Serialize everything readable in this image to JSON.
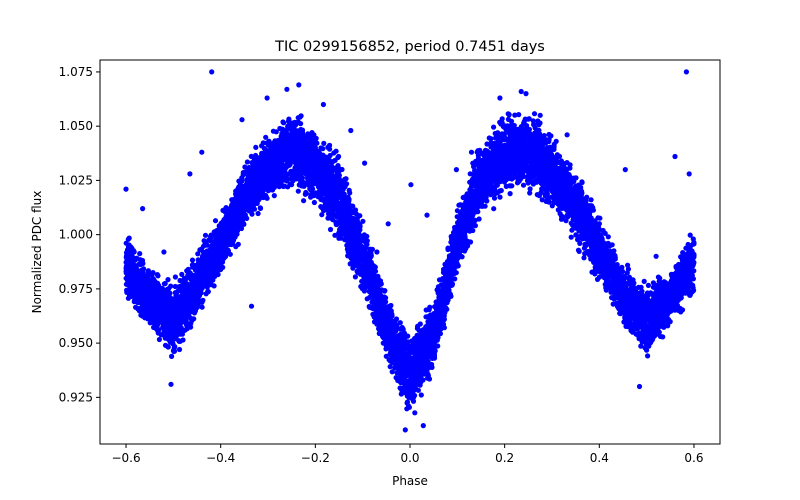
{
  "chart_data": {
    "type": "scatter",
    "title": "TIC 0299156852, period 0.7451 days",
    "xlabel": "Phase",
    "ylabel": "Normalized PDC flux",
    "xlim": [
      -0.655,
      0.655
    ],
    "ylim": [
      0.9035,
      1.0805
    ],
    "xticks": [
      -0.6,
      -0.4,
      -0.2,
      0.0,
      0.2,
      0.4,
      0.6
    ],
    "xtick_labels": [
      "−0.6",
      "−0.4",
      "−0.2",
      "0.0",
      "0.2",
      "0.4",
      "0.6"
    ],
    "yticks": [
      0.925,
      0.95,
      0.975,
      1.0,
      1.025,
      1.05,
      1.075
    ],
    "ytick_labels": [
      "0.925",
      "0.950",
      "0.975",
      "1.000",
      "1.025",
      "1.050",
      "1.075"
    ],
    "grid": false,
    "marker_color": "#0000ff",
    "series": [
      {
        "name": "",
        "color": "#0000ff",
        "envelope_upper": [
          [
            -0.6,
            1.004
          ],
          [
            -0.55,
            0.986
          ],
          [
            -0.5,
            0.982
          ],
          [
            -0.45,
            0.994
          ],
          [
            -0.4,
            1.013
          ],
          [
            -0.35,
            1.035
          ],
          [
            -0.3,
            1.05
          ],
          [
            -0.25,
            1.06
          ],
          [
            -0.2,
            1.052
          ],
          [
            -0.15,
            1.04
          ],
          [
            -0.1,
            1.01
          ],
          [
            -0.05,
            0.975
          ],
          [
            0.0,
            0.958
          ],
          [
            0.05,
            0.972
          ],
          [
            0.1,
            1.015
          ],
          [
            0.15,
            1.045
          ],
          [
            0.2,
            1.059
          ],
          [
            0.25,
            1.061
          ],
          [
            0.3,
            1.05
          ],
          [
            0.35,
            1.034
          ],
          [
            0.4,
            1.012
          ],
          [
            0.45,
            0.99
          ],
          [
            0.5,
            0.981
          ],
          [
            0.55,
            0.985
          ],
          [
            0.6,
            1.005
          ]
        ],
        "envelope_lower": [
          [
            -0.6,
            0.967
          ],
          [
            -0.55,
            0.955
          ],
          [
            -0.5,
            0.94
          ],
          [
            -0.45,
            0.958
          ],
          [
            -0.4,
            0.978
          ],
          [
            -0.35,
            1.0
          ],
          [
            -0.3,
            1.012
          ],
          [
            -0.25,
            1.018
          ],
          [
            -0.2,
            1.01
          ],
          [
            -0.15,
            0.992
          ],
          [
            -0.1,
            0.97
          ],
          [
            -0.05,
            0.94
          ],
          [
            0.0,
            0.912
          ],
          [
            0.05,
            0.935
          ],
          [
            0.1,
            0.98
          ],
          [
            0.15,
            1.006
          ],
          [
            0.2,
            1.015
          ],
          [
            0.25,
            1.016
          ],
          [
            0.3,
            1.008
          ],
          [
            0.35,
            0.993
          ],
          [
            0.4,
            0.975
          ],
          [
            0.45,
            0.955
          ],
          [
            0.5,
            0.94
          ],
          [
            0.55,
            0.957
          ],
          [
            0.6,
            0.97
          ]
        ],
        "outliers": [
          [
            -0.419,
            1.075
          ],
          [
            0.584,
            1.075
          ],
          [
            -0.302,
            1.063
          ],
          [
            -0.183,
            1.06
          ],
          [
            0.19,
            1.063
          ],
          [
            0.245,
            1.065
          ],
          [
            -0.355,
            1.053
          ],
          [
            -0.125,
            1.048
          ],
          [
            0.275,
            1.055
          ],
          [
            -0.44,
            1.038
          ],
          [
            0.56,
            1.036
          ],
          [
            0.13,
            1.038
          ],
          [
            0.59,
            1.028
          ],
          [
            -0.565,
            1.012
          ],
          [
            0.002,
            1.023
          ],
          [
            0.036,
            1.009
          ],
          [
            -0.046,
            1.005
          ],
          [
            -0.07,
            0.992
          ],
          [
            0.06,
            0.976
          ],
          [
            -0.335,
            0.967
          ],
          [
            -0.505,
            0.931
          ],
          [
            0.485,
            0.93
          ],
          [
            0.028,
            0.912
          ],
          [
            -0.01,
            0.91
          ],
          [
            -0.6,
            1.021
          ],
          [
            -0.235,
            1.069
          ],
          [
            0.235,
            1.066
          ],
          [
            0.332,
            1.046
          ],
          [
            -0.26,
            1.067
          ],
          [
            0.455,
            1.03
          ],
          [
            -0.465,
            1.028
          ],
          [
            0.098,
            1.03
          ],
          [
            -0.096,
            1.033
          ],
          [
            0.52,
            0.99
          ],
          [
            -0.52,
            0.992
          ]
        ]
      }
    ]
  }
}
